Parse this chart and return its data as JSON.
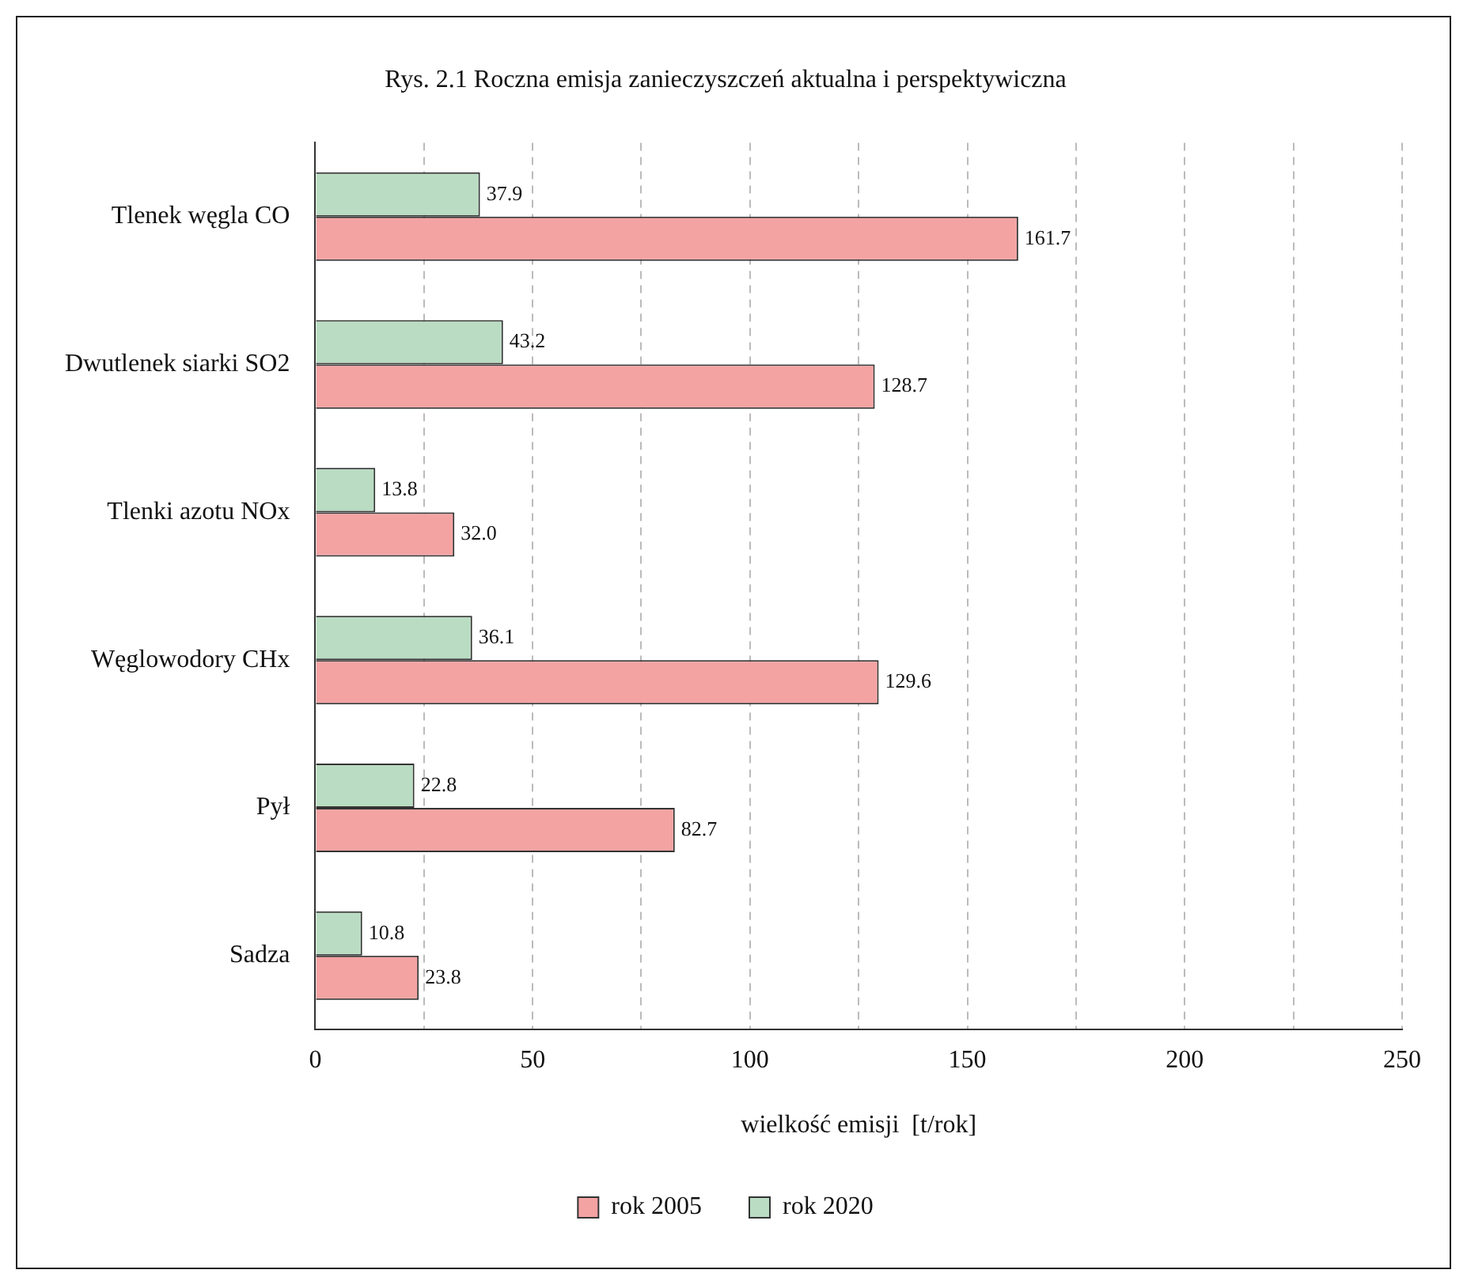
{
  "chart_data": {
    "type": "bar",
    "orientation": "horizontal",
    "title": "Rys. 2.1 Roczna emisja zanieczyszczeń aktualna i perspektywiczna",
    "xlabel": "wielkość emisji  [t/rok]",
    "categories": [
      "Tlenek węgla CO",
      "Dwutlenek siarki SO2",
      "Tlenki azotu NOx",
      "Węglowodory CHx",
      "Pył",
      "Sadza"
    ],
    "series": [
      {
        "name": "rok 2020",
        "color": "#b9dcc2",
        "values": [
          37.9,
          43.2,
          13.8,
          36.1,
          22.8,
          10.8
        ],
        "value_labels": [
          "37.9",
          "43.2",
          "13.8",
          "36.1",
          "22.8",
          "10.8"
        ]
      },
      {
        "name": "rok 2005",
        "color": "#f4a3a3",
        "values": [
          161.7,
          128.7,
          32.0,
          129.6,
          82.7,
          23.8
        ],
        "value_labels": [
          "161.7",
          "128.7",
          "32.0",
          "129.6",
          "82.7",
          "23.8"
        ]
      }
    ],
    "xlim": [
      0,
      250
    ],
    "xticks": [
      0,
      {
        "value": 25,
        "label": null
      },
      50,
      {
        "value": 75,
        "label": null
      },
      100,
      {
        "value": 125,
        "label": null
      },
      150,
      {
        "value": 175,
        "label": null
      },
      200,
      {
        "value": 225,
        "label": null
      },
      250
    ],
    "grid": "x",
    "legend": "bottom"
  }
}
